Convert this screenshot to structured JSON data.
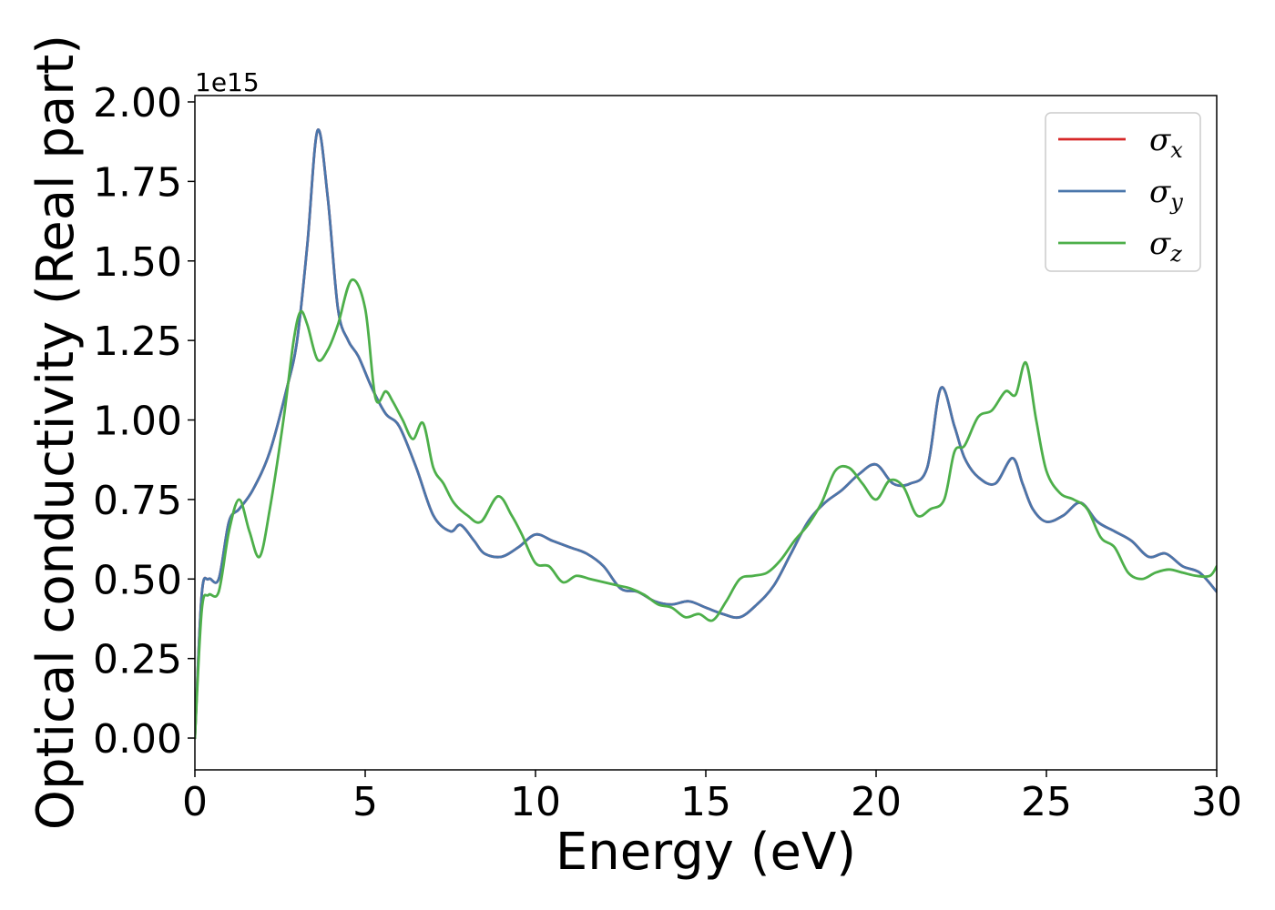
{
  "chart_data": {
    "type": "line",
    "title": "",
    "xlabel": "Energy (eV)",
    "ylabel": "Optical conductivity (Real part)",
    "y_offset_label": "1e15",
    "xlim": [
      0,
      30
    ],
    "ylim": [
      -0.1,
      2.02
    ],
    "x_ticks": [
      0,
      5,
      10,
      15,
      20,
      25,
      30
    ],
    "x_tick_labels": [
      "0",
      "5",
      "10",
      "15",
      "20",
      "25",
      "30"
    ],
    "y_ticks": [
      0,
      0.25,
      0.5,
      0.75,
      1.0,
      1.25,
      1.5,
      1.75,
      2.0
    ],
    "y_tick_labels": [
      "0.00",
      "0.25",
      "0.50",
      "0.75",
      "1.00",
      "1.25",
      "1.50",
      "1.75",
      "2.00"
    ],
    "grid": false,
    "legend_position": "top-right",
    "series": [
      {
        "name": "x",
        "legend_symbol": "σ",
        "legend_sub": "x",
        "color": "#d62728",
        "x": [
          0,
          0.2,
          0.4,
          0.7,
          1.0,
          1.3,
          1.7,
          2.2,
          2.7,
          3.0,
          3.3,
          3.6,
          3.9,
          4.2,
          4.5,
          4.8,
          5.2,
          5.6,
          6.0,
          6.5,
          7.0,
          7.5,
          7.8,
          8.2,
          8.5,
          9.0,
          9.5,
          10.0,
          10.5,
          11.0,
          11.5,
          12.0,
          12.5,
          13.0,
          13.5,
          14.0,
          14.5,
          15.0,
          15.5,
          16.0,
          16.5,
          17.0,
          17.5,
          18.0,
          18.5,
          19.0,
          19.5,
          20.0,
          20.5,
          21.0,
          21.5,
          21.9,
          22.3,
          22.6,
          23.0,
          23.5,
          24.0,
          24.3,
          24.6,
          25.0,
          25.5,
          26.0,
          26.5,
          27.0,
          27.5,
          28.0,
          28.5,
          29.0,
          29.5,
          30.0
        ],
        "y": [
          0.0,
          0.45,
          0.5,
          0.5,
          0.68,
          0.72,
          0.78,
          0.9,
          1.1,
          1.25,
          1.55,
          1.91,
          1.7,
          1.35,
          1.25,
          1.2,
          1.1,
          1.02,
          0.98,
          0.85,
          0.7,
          0.65,
          0.67,
          0.62,
          0.58,
          0.57,
          0.6,
          0.64,
          0.62,
          0.6,
          0.58,
          0.54,
          0.47,
          0.46,
          0.43,
          0.42,
          0.43,
          0.41,
          0.39,
          0.38,
          0.42,
          0.48,
          0.58,
          0.68,
          0.74,
          0.78,
          0.83,
          0.86,
          0.8,
          0.8,
          0.85,
          1.1,
          0.98,
          0.88,
          0.82,
          0.8,
          0.88,
          0.8,
          0.72,
          0.68,
          0.7,
          0.74,
          0.68,
          0.65,
          0.62,
          0.57,
          0.58,
          0.54,
          0.52,
          0.46
        ]
      },
      {
        "name": "y",
        "legend_symbol": "σ",
        "legend_sub": "y",
        "color": "#4a76ab",
        "x": [
          0,
          0.2,
          0.4,
          0.7,
          1.0,
          1.3,
          1.7,
          2.2,
          2.7,
          3.0,
          3.3,
          3.6,
          3.9,
          4.2,
          4.5,
          4.8,
          5.2,
          5.6,
          6.0,
          6.5,
          7.0,
          7.5,
          7.8,
          8.2,
          8.5,
          9.0,
          9.5,
          10.0,
          10.5,
          11.0,
          11.5,
          12.0,
          12.5,
          13.0,
          13.5,
          14.0,
          14.5,
          15.0,
          15.5,
          16.0,
          16.5,
          17.0,
          17.5,
          18.0,
          18.5,
          19.0,
          19.5,
          20.0,
          20.5,
          21.0,
          21.5,
          21.9,
          22.3,
          22.6,
          23.0,
          23.5,
          24.0,
          24.3,
          24.6,
          25.0,
          25.5,
          26.0,
          26.5,
          27.0,
          27.5,
          28.0,
          28.5,
          29.0,
          29.5,
          30.0
        ],
        "y": [
          0.0,
          0.45,
          0.5,
          0.5,
          0.68,
          0.72,
          0.78,
          0.9,
          1.1,
          1.25,
          1.55,
          1.91,
          1.7,
          1.35,
          1.25,
          1.2,
          1.1,
          1.02,
          0.98,
          0.85,
          0.7,
          0.65,
          0.67,
          0.62,
          0.58,
          0.57,
          0.6,
          0.64,
          0.62,
          0.6,
          0.58,
          0.54,
          0.47,
          0.46,
          0.43,
          0.42,
          0.43,
          0.41,
          0.39,
          0.38,
          0.42,
          0.48,
          0.58,
          0.68,
          0.74,
          0.78,
          0.83,
          0.86,
          0.8,
          0.8,
          0.85,
          1.1,
          0.98,
          0.88,
          0.82,
          0.8,
          0.88,
          0.8,
          0.72,
          0.68,
          0.7,
          0.74,
          0.68,
          0.65,
          0.62,
          0.57,
          0.58,
          0.54,
          0.52,
          0.46
        ]
      },
      {
        "name": "z",
        "legend_symbol": "σ",
        "legend_sub": "z",
        "color": "#4daf4a",
        "x": [
          0,
          0.2,
          0.4,
          0.7,
          1.0,
          1.3,
          1.6,
          1.9,
          2.2,
          2.6,
          2.9,
          3.1,
          3.3,
          3.6,
          3.9,
          4.2,
          4.6,
          5.0,
          5.3,
          5.6,
          5.8,
          6.1,
          6.4,
          6.7,
          7.0,
          7.3,
          7.6,
          8.0,
          8.4,
          8.9,
          9.3,
          9.6,
          10.0,
          10.4,
          10.8,
          11.2,
          11.6,
          12.0,
          12.4,
          12.8,
          13.2,
          13.6,
          14.0,
          14.4,
          14.8,
          15.2,
          15.6,
          16.0,
          16.4,
          16.8,
          17.2,
          17.6,
          18.0,
          18.4,
          18.8,
          19.2,
          19.6,
          20.0,
          20.4,
          20.8,
          21.2,
          21.6,
          22.0,
          22.3,
          22.6,
          23.0,
          23.4,
          23.8,
          24.1,
          24.4,
          24.7,
          25.0,
          25.4,
          25.8,
          26.2,
          26.6,
          27.0,
          27.4,
          27.8,
          28.2,
          28.6,
          29.0,
          29.4,
          29.8,
          30.0
        ],
        "y": [
          0.0,
          0.4,
          0.45,
          0.46,
          0.65,
          0.75,
          0.65,
          0.57,
          0.72,
          1.0,
          1.25,
          1.34,
          1.3,
          1.19,
          1.22,
          1.3,
          1.44,
          1.35,
          1.07,
          1.09,
          1.06,
          1.0,
          0.94,
          0.99,
          0.85,
          0.8,
          0.74,
          0.7,
          0.68,
          0.76,
          0.7,
          0.64,
          0.55,
          0.54,
          0.49,
          0.51,
          0.5,
          0.49,
          0.48,
          0.47,
          0.45,
          0.42,
          0.41,
          0.38,
          0.39,
          0.37,
          0.43,
          0.5,
          0.51,
          0.52,
          0.56,
          0.62,
          0.67,
          0.74,
          0.84,
          0.85,
          0.8,
          0.75,
          0.81,
          0.79,
          0.7,
          0.72,
          0.75,
          0.9,
          0.92,
          1.01,
          1.03,
          1.09,
          1.08,
          1.18,
          1.0,
          0.84,
          0.77,
          0.75,
          0.72,
          0.63,
          0.6,
          0.52,
          0.5,
          0.52,
          0.53,
          0.52,
          0.51,
          0.51,
          0.54
        ]
      }
    ]
  }
}
